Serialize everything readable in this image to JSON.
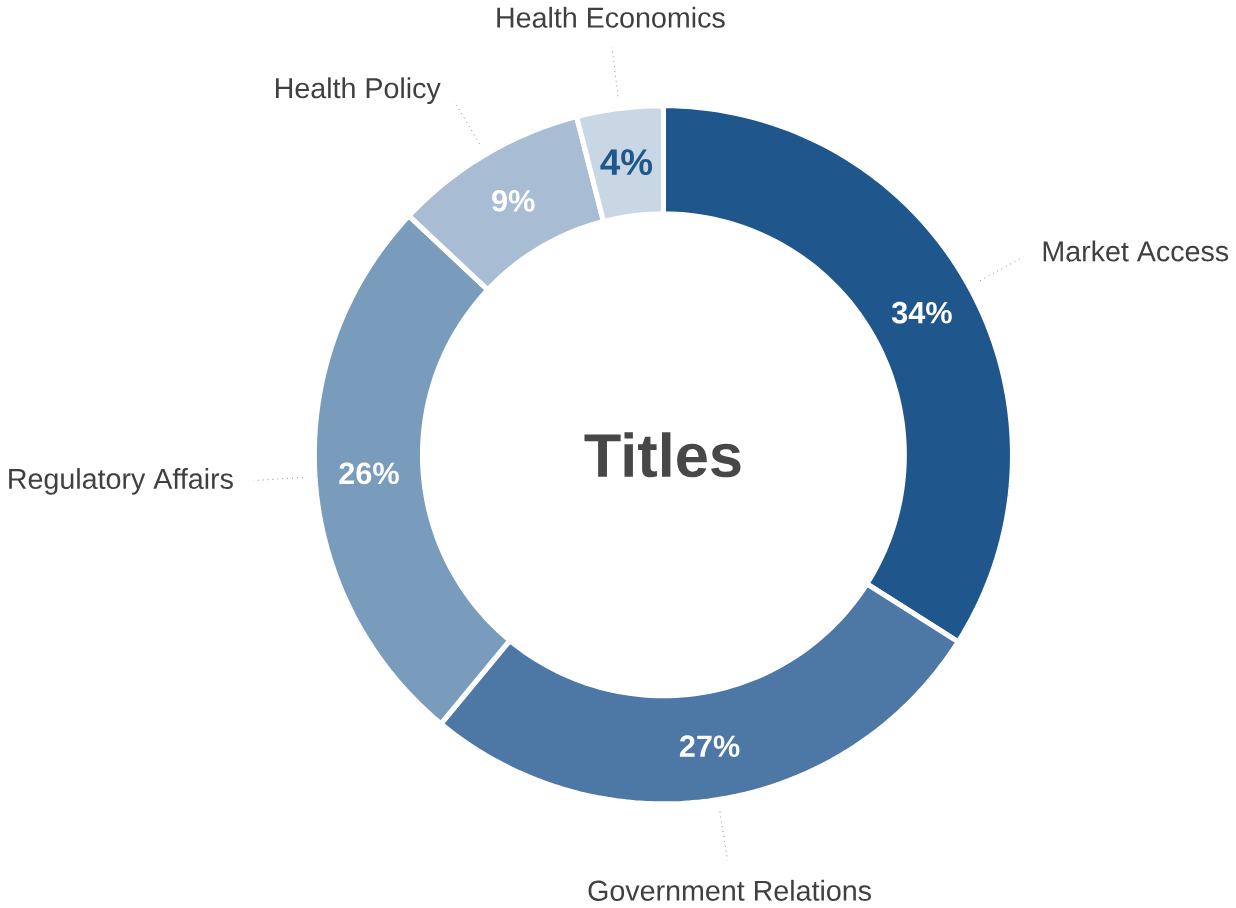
{
  "chart_data": {
    "type": "donut",
    "title": "Titles",
    "categories": [
      "Market Access",
      "Government Relations",
      "Regulatory Affairs",
      "Health Policy",
      "Health Economics"
    ],
    "values": [
      34,
      27,
      26,
      9,
      4
    ],
    "value_labels": [
      "34%",
      "27%",
      "26%",
      "9%",
      "4%"
    ],
    "colors": [
      "#1f568c",
      "#4d77a4",
      "#7a9cbc",
      "#a8bdd4",
      "#c9d6e4"
    ]
  }
}
